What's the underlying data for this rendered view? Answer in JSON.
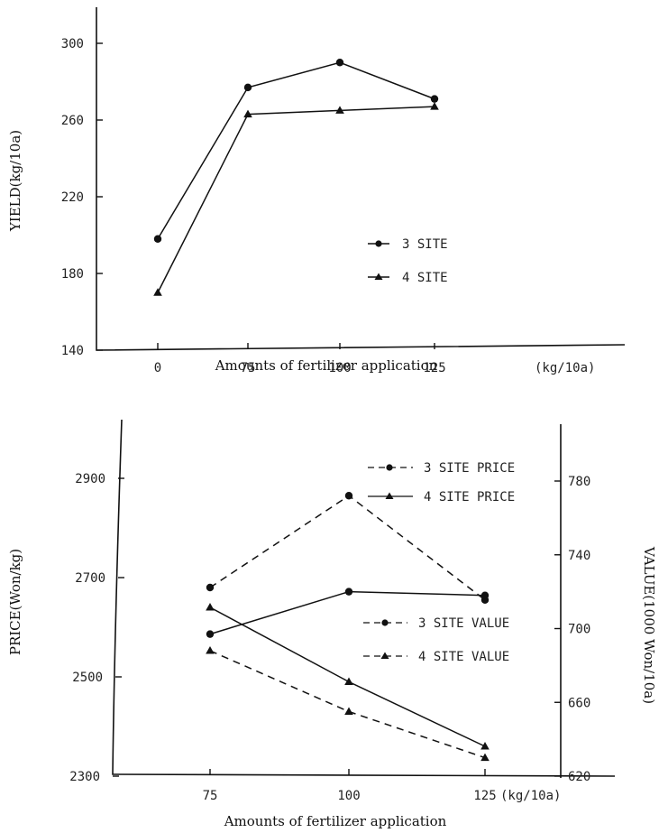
{
  "chart_data": [
    {
      "type": "line",
      "title": "",
      "xlabel": "Amounts of fertilizer application",
      "xunit": "(kg/10a)",
      "ylabel": "YIELD(kg/10a)",
      "categories": [
        "0",
        "75",
        "100",
        "125"
      ],
      "yticks": [
        140,
        180,
        220,
        260,
        300
      ],
      "ylim": [
        140,
        320
      ],
      "series": [
        {
          "name": "3 SITE",
          "marker": "circle",
          "dash": false,
          "values": [
            198,
            277,
            290,
            271
          ]
        },
        {
          "name": "4 SITE",
          "marker": "triangle",
          "dash": false,
          "values": [
            170,
            263,
            265,
            267
          ]
        }
      ],
      "legend_position": "center-right"
    },
    {
      "type": "line",
      "title": "",
      "xlabel": "Amounts of fertilizer application",
      "xunit": "(kg/10a)",
      "ylabel": "PRICE(Won/kg)",
      "y2label": "VALUE(1000 Won/10a)",
      "categories": [
        "75",
        "100",
        "125"
      ],
      "yticks": [
        2300,
        2500,
        2700,
        2900
      ],
      "ylim": [
        2300,
        3050
      ],
      "y2ticks": [
        620,
        660,
        700,
        740,
        780
      ],
      "y2lim": [
        620,
        770
      ],
      "series": [
        {
          "name": "3 SITE PRICE",
          "axis": "left",
          "marker": "circle",
          "dash": true,
          "values": [
            2680,
            2865,
            2655
          ]
        },
        {
          "name": "4 SITE PRICE",
          "axis": "left",
          "marker": "triangle",
          "dash": false,
          "values": [
            2640,
            2490,
            2360
          ]
        },
        {
          "name": "3 SITE VALUE",
          "axis": "right",
          "marker": "circle",
          "dash": false,
          "values": [
            697,
            720,
            718
          ]
        },
        {
          "name": "4 SITE VALUE",
          "axis": "right",
          "marker": "triangle",
          "dash": true,
          "values": [
            688,
            655,
            630
          ]
        }
      ],
      "legend_position": "right"
    }
  ]
}
